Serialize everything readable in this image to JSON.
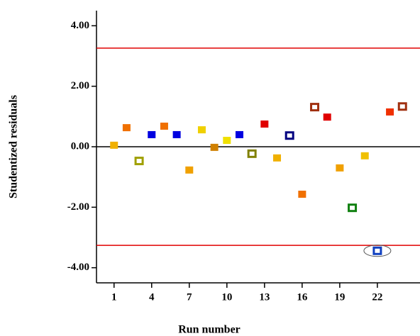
{
  "chart_data": {
    "type": "scatter",
    "xlabel": "Run number",
    "ylabel": "Studentized residuals",
    "series": [
      {
        "x": [
          1,
          2,
          3,
          4,
          5,
          6,
          7,
          8,
          9,
          10,
          11,
          12,
          13,
          14,
          15,
          16,
          17,
          18,
          19,
          20,
          21,
          22,
          23,
          24
        ],
        "values": [
          0.05,
          0.63,
          -0.47,
          0.4,
          0.68,
          0.4,
          -0.77,
          0.56,
          -0.02,
          0.21,
          0.4,
          -0.23,
          0.75,
          -0.37,
          0.37,
          -1.57,
          1.31,
          0.98,
          -0.7,
          -2.02,
          -0.3,
          -3.44,
          1.15,
          1.33
        ],
        "colors": [
          "#f0b000",
          "#f07000",
          "#a0a000",
          "#0000e0",
          "#f07000",
          "#0000e0",
          "#f0a000",
          "#f0d000",
          "#d08000",
          "#f0e000",
          "#0000e0",
          "#808000",
          "#e00000",
          "#f0b000",
          "#000080",
          "#f07000",
          "#a03010",
          "#e00000",
          "#f0a000",
          "#108010",
          "#f0c000",
          "#1040c0",
          "#f03000",
          "#a03010"
        ],
        "hollow": [
          false,
          false,
          true,
          false,
          false,
          false,
          false,
          false,
          false,
          false,
          false,
          true,
          false,
          false,
          true,
          false,
          true,
          false,
          false,
          true,
          false,
          true,
          false,
          true
        ]
      }
    ],
    "selected_x": 22,
    "limit_lines": [
      3.26,
      -3.26
    ],
    "limit_color": "#e00000",
    "xlim": [
      -0.4,
      25.4
    ],
    "xticks": [
      1,
      4,
      7,
      10,
      13,
      16,
      19,
      22
    ],
    "ylim": [
      -4.5,
      4.5
    ],
    "yticks": [
      {
        "value": 4,
        "label": "4.00"
      },
      {
        "value": 2,
        "label": "2.00"
      },
      {
        "value": 0,
        "label": "0.00"
      },
      {
        "value": -2,
        "label": "-2.00"
      },
      {
        "value": -4,
        "label": "-4.00"
      }
    ]
  }
}
